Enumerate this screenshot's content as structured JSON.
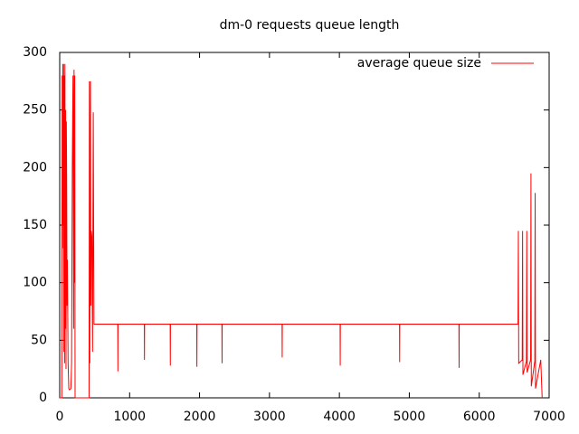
{
  "chart_data": {
    "type": "line",
    "title": "dm-0 requests queue length",
    "x": [
      0,
      30,
      35,
      40,
      45,
      50,
      55,
      60,
      65,
      70,
      75,
      80,
      85,
      90,
      95,
      100,
      105,
      110,
      120,
      130,
      140,
      160,
      170,
      180,
      190,
      200,
      205,
      210,
      215,
      220,
      420,
      425,
      430,
      440,
      445,
      450,
      460,
      470,
      480,
      490,
      830,
      832,
      834,
      1210,
      1212,
      1214,
      1580,
      1582,
      1584,
      1960,
      1962,
      1964,
      2320,
      2322,
      2324,
      3180,
      3182,
      3184,
      4010,
      4012,
      4014,
      4860,
      4862,
      4864,
      5710,
      5712,
      5714,
      6555,
      6560,
      6565,
      6615,
      6620,
      6625,
      6675,
      6680,
      6685,
      6735,
      6740,
      6745,
      6795,
      6800,
      6805,
      6880,
      6900
    ],
    "series": [
      {
        "name": "average queue size",
        "color": "#ff0000",
        "values": [
          0,
          0,
          280,
          150,
          290,
          130,
          290,
          40,
          280,
          30,
          290,
          60,
          250,
          25,
          240,
          185,
          80,
          120,
          30,
          8,
          7,
          8,
          30,
          200,
          280,
          60,
          285,
          100,
          280,
          0,
          0,
          275,
          30,
          275,
          80,
          145,
          140,
          40,
          248,
          64,
          64,
          23,
          64,
          64,
          33,
          64,
          64,
          28,
          64,
          64,
          27,
          64,
          64,
          30,
          64,
          64,
          35,
          64,
          64,
          28,
          64,
          64,
          31,
          64,
          64,
          26,
          64,
          64,
          145,
          30,
          33,
          145,
          20,
          32,
          145,
          22,
          33,
          195,
          10,
          32,
          178,
          8,
          33,
          0
        ]
      }
    ],
    "xlim": [
      0,
      7000
    ],
    "xticks": [
      0,
      1000,
      2000,
      3000,
      4000,
      5000,
      6000,
      7000
    ],
    "ylim": [
      0,
      300
    ],
    "yticks": [
      0,
      50,
      100,
      150,
      200,
      250,
      300
    ],
    "legend": "top-right",
    "grid": false
  }
}
